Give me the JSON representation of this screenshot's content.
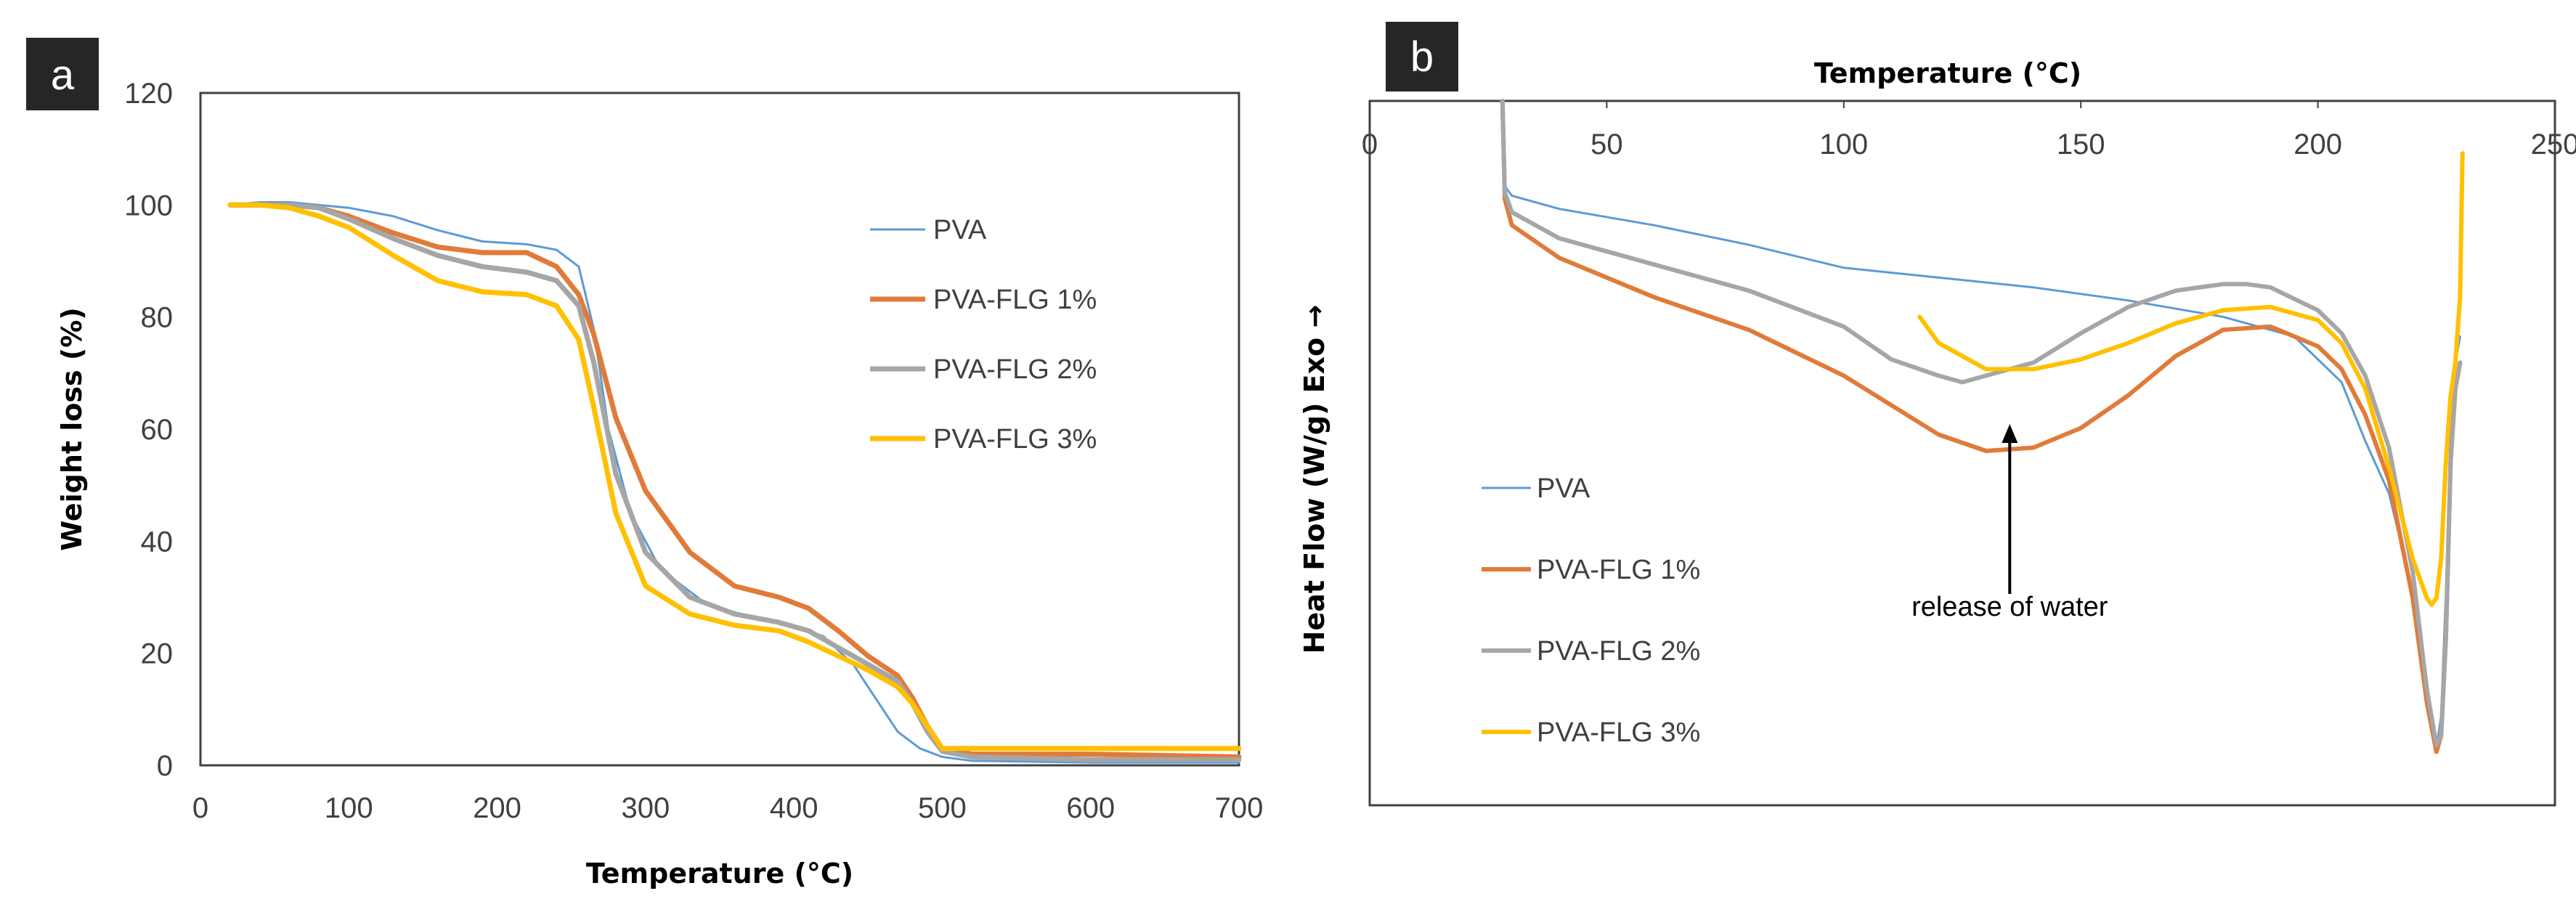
{
  "chart_data": [
    {
      "panel": "a",
      "type": "line",
      "title": "",
      "xlabel": "Temperature (°C)",
      "ylabel": "Weight loss (%)",
      "xlim": [
        0,
        700
      ],
      "ylim": [
        0,
        120
      ],
      "xticks": [
        0,
        100,
        200,
        300,
        400,
        500,
        600,
        700
      ],
      "yticks": [
        0,
        20,
        40,
        60,
        80,
        100,
        120
      ],
      "xtick_labels": [
        "0",
        "100",
        "200",
        "300",
        "400",
        "500",
        "600",
        "700"
      ],
      "ytick_labels": [
        "0",
        "20",
        "40",
        "60",
        "80",
        "100",
        "120"
      ],
      "grid": false,
      "legend_position": "top-right",
      "series": [
        {
          "name": "PVA",
          "color": "#5b9bd5",
          "x": [
            20,
            40,
            60,
            100,
            130,
            160,
            190,
            220,
            240,
            255,
            265,
            275,
            290,
            310,
            340,
            370,
            400,
            420,
            440,
            455,
            470,
            485,
            500,
            520,
            600,
            700
          ],
          "y": [
            100,
            100.5,
            100.5,
            99.5,
            98,
            95.5,
            93.5,
            93,
            92,
            89,
            78,
            60,
            45,
            35,
            29,
            26.5,
            25,
            23,
            18,
            12,
            6,
            3,
            1.5,
            0.8,
            0.5,
            0.5
          ]
        },
        {
          "name": "PVA-FLG 1%",
          "color": "#e07b39",
          "x": [
            20,
            40,
            60,
            80,
            100,
            130,
            160,
            190,
            220,
            240,
            255,
            265,
            280,
            300,
            330,
            360,
            390,
            410,
            430,
            450,
            470,
            480,
            490,
            500,
            520,
            600,
            700
          ],
          "y": [
            100,
            100,
            100,
            99.5,
            98,
            95,
            92.5,
            91.5,
            91.5,
            89,
            84,
            77,
            62,
            49,
            38,
            32,
            30,
            28,
            24,
            19.5,
            16,
            12,
            7,
            3,
            2,
            2,
            1.5
          ]
        },
        {
          "name": "PVA-FLG 2%",
          "color": "#a6a6a6",
          "x": [
            20,
            40,
            60,
            80,
            100,
            130,
            160,
            190,
            220,
            240,
            255,
            265,
            280,
            300,
            330,
            360,
            390,
            410,
            430,
            450,
            470,
            480,
            490,
            500,
            520,
            600,
            700
          ],
          "y": [
            100,
            100,
            100,
            99.5,
            97.5,
            94,
            91,
            89,
            88,
            86.5,
            82,
            72,
            52,
            38,
            30,
            27,
            25.5,
            24,
            21,
            18,
            15,
            11,
            6,
            2.5,
            1.5,
            1,
            1
          ]
        },
        {
          "name": "PVA-FLG 3%",
          "color": "#ffc000",
          "x": [
            20,
            40,
            60,
            80,
            100,
            130,
            160,
            190,
            220,
            240,
            255,
            265,
            280,
            300,
            330,
            360,
            390,
            410,
            430,
            450,
            470,
            480,
            490,
            500,
            520,
            600,
            700
          ],
          "y": [
            100,
            100,
            99.5,
            98,
            96,
            91,
            86.5,
            84.5,
            84,
            82,
            76,
            64,
            45,
            32,
            27,
            25,
            24,
            22,
            19.5,
            17,
            14,
            11,
            7,
            3,
            3,
            3,
            3
          ]
        }
      ]
    },
    {
      "panel": "b",
      "type": "line",
      "title": "",
      "xlabel": "Temperature (°C)",
      "ylabel": "Heat Flow (W/g)  Exo →",
      "xlim": [
        0,
        250
      ],
      "xticks": [
        0,
        50,
        100,
        150,
        200,
        250
      ],
      "xtick_labels": [
        "0",
        "50",
        "100",
        "150",
        "200",
        "250"
      ],
      "xaxis_position": "top",
      "y_units": "arbitrary, 0 = top of plot, 100 = bottom of plot",
      "grid": false,
      "legend_position": "bottom-left",
      "annotation": {
        "text": "release of water",
        "arrow_x": 135
      },
      "series": [
        {
          "name": "PVA",
          "color": "#5b9bd5",
          "x": [
            28,
            28.5,
            30,
            40,
            60,
            80,
            100,
            120,
            140,
            160,
            180,
            195,
            205,
            210,
            215,
            220,
            223,
            225,
            226,
            227,
            228,
            229,
            230
          ],
          "y": [
            0,
            13,
            14.5,
            16.5,
            19,
            22,
            25.5,
            27,
            28.5,
            30.5,
            33,
            36,
            43,
            52,
            60,
            75,
            92,
            99,
            94,
            75,
            50,
            40,
            36
          ]
        },
        {
          "name": "PVA-FLG 1%",
          "color": "#e07b39",
          "x": [
            28,
            28.5,
            30,
            40,
            60,
            80,
            100,
            120,
            130,
            140,
            150,
            160,
            170,
            180,
            190,
            200,
            205,
            210,
            215,
            220,
            223,
            225,
            226,
            227,
            228,
            229,
            230
          ],
          "y": [
            0,
            15,
            19,
            24,
            30,
            35,
            42,
            51,
            53.5,
            53,
            50,
            45,
            39,
            35,
            34.5,
            37.5,
            41,
            48,
            58,
            76,
            92,
            99.5,
            97,
            82,
            55,
            44,
            40
          ]
        },
        {
          "name": "PVA-FLG 2%",
          "color": "#a6a6a6",
          "x": [
            28,
            28.5,
            30,
            40,
            60,
            80,
            100,
            110,
            120,
            125,
            130,
            140,
            150,
            160,
            170,
            180,
            185,
            190,
            200,
            205,
            210,
            215,
            220,
            223,
            225,
            226,
            227,
            228,
            229,
            230
          ],
          "y": [
            0,
            14,
            17,
            21,
            25,
            29,
            34.5,
            39.5,
            42,
            43,
            42,
            40,
            35.5,
            31.5,
            29,
            28,
            28,
            28.5,
            32,
            35.5,
            42,
            53,
            72,
            90,
            98.5,
            97,
            82,
            55,
            44,
            40
          ]
        },
        {
          "name": "PVA-FLG 3%",
          "color": "#ffc000",
          "x": [
            116,
            120,
            130,
            140,
            150,
            160,
            170,
            180,
            190,
            200,
            205,
            210,
            215,
            220,
            223,
            224,
            225,
            226,
            227,
            228,
            229,
            230,
            230.5
          ],
          "y": [
            33,
            37,
            41,
            41,
            39.5,
            37,
            34,
            32,
            31.5,
            33.5,
            37,
            44,
            56,
            70,
            76,
            77,
            76,
            70,
            55,
            45,
            40,
            30,
            8
          ]
        }
      ]
    }
  ]
}
